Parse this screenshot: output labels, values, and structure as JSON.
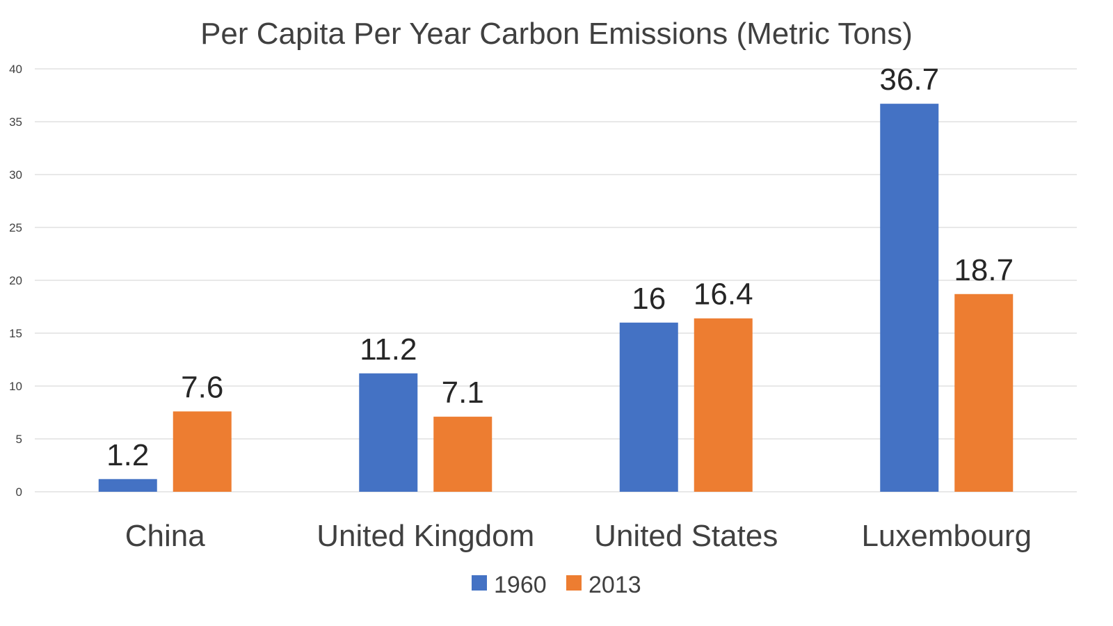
{
  "chart_data": {
    "type": "bar",
    "title": "Per Capita Per Year Carbon Emissions (Metric Tons)",
    "xlabel": "",
    "ylabel": "",
    "categories": [
      "China",
      "United Kingdom",
      "United States",
      "Luxembourg"
    ],
    "series": [
      {
        "name": "1960",
        "values": [
          1.2,
          11.2,
          16,
          36.7
        ],
        "color": "#4472C4"
      },
      {
        "name": "2013",
        "values": [
          7.6,
          7.1,
          16.4,
          18.7
        ],
        "color": "#ED7D31"
      }
    ],
    "data_labels": [
      [
        "1.2",
        "11.2",
        "16",
        "36.7"
      ],
      [
        "7.6",
        "7.1",
        "16.4",
        "18.7"
      ]
    ],
    "ylim": [
      0,
      40
    ],
    "yticks": [
      "0",
      "5",
      "10",
      "15",
      "20",
      "25",
      "30",
      "35",
      "40"
    ],
    "grid": true,
    "legend_position": "bottom"
  }
}
